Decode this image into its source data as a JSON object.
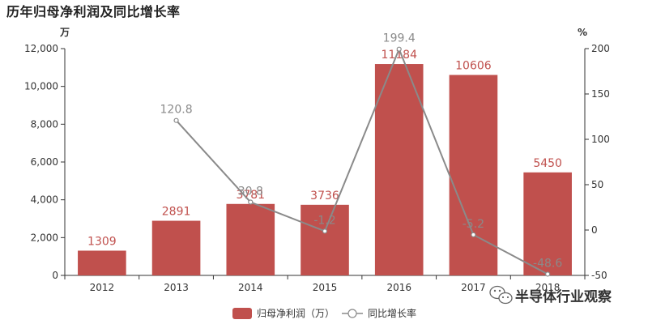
{
  "colors": {
    "bar": "#c0504d",
    "line": "#8a8a8a",
    "axis": "#333333"
  },
  "watermark": {
    "text": "半导体行业观察",
    "icon": "wechat-icon"
  },
  "chart_data": {
    "type": "bar",
    "title": "历年归母净利润及同比增长率",
    "y_left_unit": "万",
    "y_right_unit": "%",
    "categories": [
      "2012",
      "2013",
      "2014",
      "2015",
      "2016",
      "2017",
      "2018"
    ],
    "ylim_left": [
      0,
      12000
    ],
    "ylim_right": [
      -50,
      200
    ],
    "yticks_left": [
      "0",
      "2,000",
      "4,000",
      "6,000",
      "8,000",
      "10,000",
      "12,000"
    ],
    "yticks_right": [
      "-50",
      "0",
      "50",
      "100",
      "150",
      "200"
    ],
    "series": [
      {
        "name": "归母净利润（万）",
        "type": "bar",
        "axis": "left",
        "values": [
          1309,
          2891,
          3781,
          3736,
          11184,
          10606,
          5450
        ],
        "labels": [
          "1309",
          "2891",
          "3781",
          "3736",
          "11184",
          "10606",
          "5450"
        ]
      },
      {
        "name": "同比增长率",
        "type": "line",
        "axis": "right",
        "values": [
          null,
          120.8,
          30.8,
          -1.2,
          199.4,
          -5.2,
          -48.6
        ],
        "labels": [
          "",
          "120.8",
          "30.8",
          "-1.2",
          "199.4",
          "-5.2",
          "-48.6"
        ]
      }
    ],
    "legend": "bottom",
    "grid": false
  }
}
